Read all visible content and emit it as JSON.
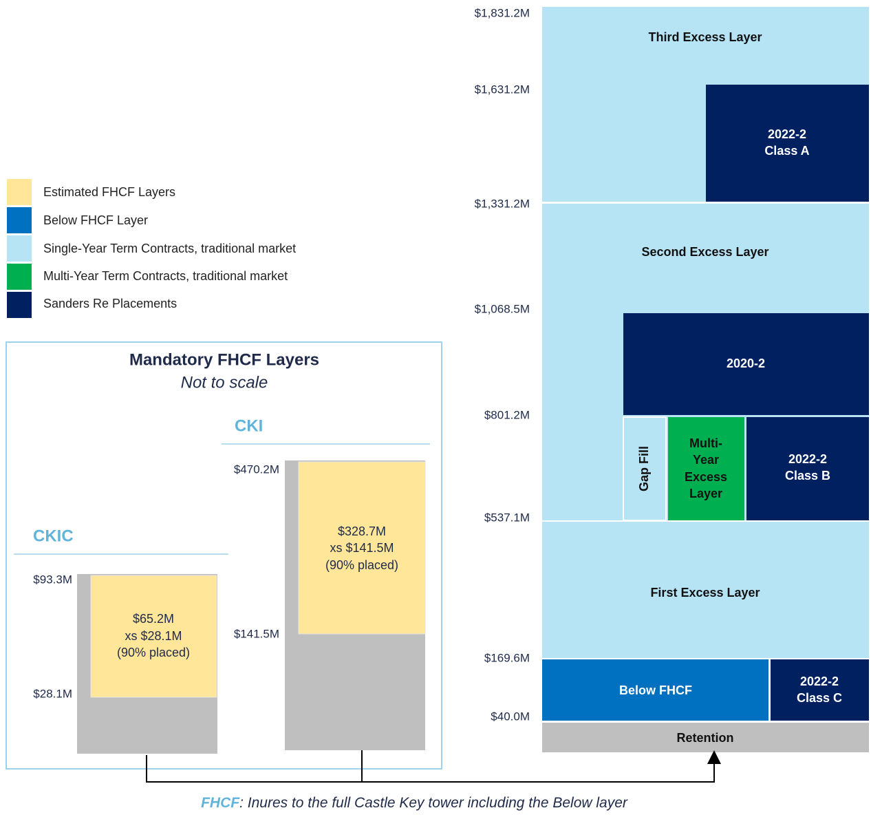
{
  "legend": [
    "Estimated  FHCF Layers",
    "Below FHCF Layer",
    "Single-Year Term Contracts, traditional market",
    "Multi-Year Term Contracts, traditional market",
    "Sanders Re Placements"
  ],
  "tower": {
    "axis_labels": [
      "$1,831.2M",
      "$1,631.2M",
      "$1,331.2M",
      "$1,068.5M",
      "$801.2M",
      "$537.1M",
      "$169.6M",
      "$40.0M"
    ],
    "third_excess": "Third Excess  Layer",
    "class_a": [
      "2022-2",
      "Class A"
    ],
    "second_excess": "Second Excess  Layer",
    "layer_2020": "2020-2",
    "gap_fill": "Gap Fill",
    "multi_year": [
      "Multi-",
      "Year",
      "Excess",
      "Layer"
    ],
    "class_b": [
      "2022-2",
      "Class B"
    ],
    "first_excess": "First Excess  Layer",
    "below_fhcf": "Below FHCF",
    "class_c": [
      "2022-2",
      "Class C"
    ],
    "retention": "Retention"
  },
  "inset": {
    "title": "Mandatory  FHCF Layers",
    "subtitle": "Not to scale",
    "ckic": {
      "name": "CKIC",
      "top": "$93.3M",
      "bottom": "$28.1M",
      "lines": [
        "$65.2M",
        "xs $28.1M",
        "(90% placed)"
      ]
    },
    "cki": {
      "name": "CKI",
      "top": "$470.2M",
      "bottom": "$141.5M",
      "lines": [
        "$328.7M",
        "xs $141.5M",
        "(90% placed)"
      ]
    }
  },
  "footnote": {
    "prefix": "FHCF",
    "text": ": Inures to the full Castle Key tower including the Below layer"
  }
}
